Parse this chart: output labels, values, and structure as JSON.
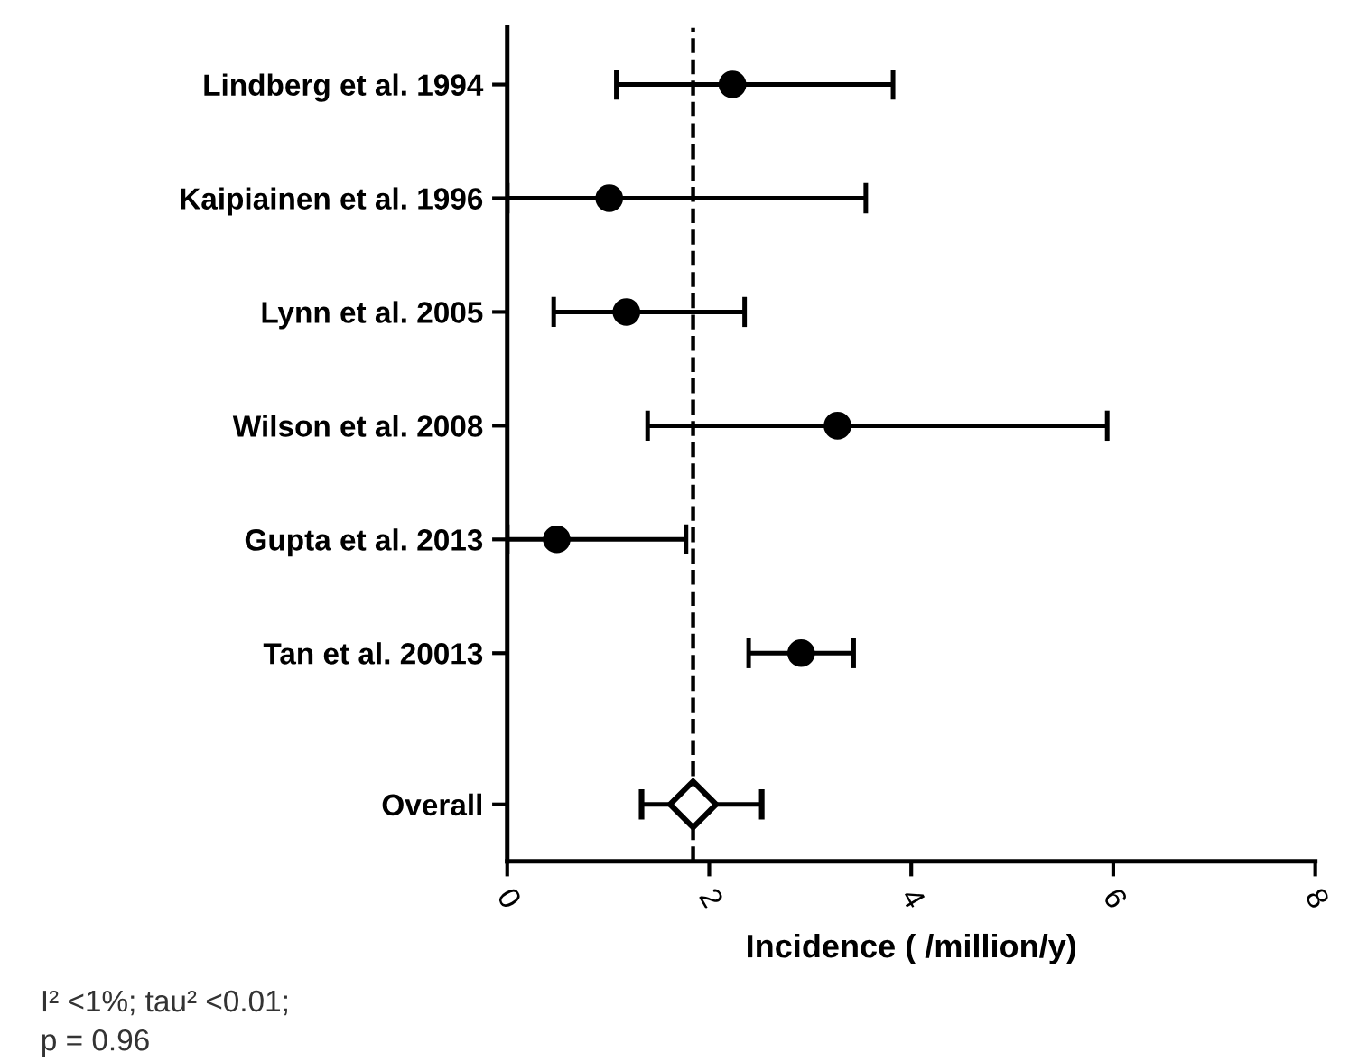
{
  "chart_data": {
    "type": "scatter",
    "orientation": "horizontal",
    "xlabel": "Incidence ( /million/y)",
    "categories": [
      "Lindberg et al. 1994",
      "Kaipiainen et al. 1996",
      "Lynn et al. 2005",
      "Wilson et al. 2008",
      "Gupta et al. 2013",
      "Tan et al. 20013",
      "Overall"
    ],
    "series": [
      {
        "color": "#000000",
        "marker": "circle",
        "values": [
          2.23,
          1.01,
          1.18,
          3.27,
          0.49,
          2.91,
          null
        ],
        "errors": [
          [
            1.08,
            3.82
          ],
          [
            0.0,
            3.55
          ],
          [
            0.46,
            2.35
          ],
          [
            1.39,
            5.94
          ],
          [
            0.0,
            1.77
          ],
          [
            2.39,
            3.43
          ],
          null
        ]
      },
      {
        "color": "#000000",
        "marker": "diamond",
        "values": [
          null,
          null,
          null,
          null,
          null,
          null,
          1.84
        ],
        "errors": [
          null,
          null,
          null,
          null,
          null,
          null,
          [
            1.33,
            2.52
          ]
        ]
      }
    ],
    "xlim": [
      0,
      8
    ],
    "xticks": [
      0,
      2,
      4,
      6,
      8
    ],
    "ref_lines": [
      {
        "axis": "x",
        "value": 1.84,
        "color": "#000000",
        "line_style": "dashed"
      }
    ],
    "annotations": [
      "I² <1%; tau² <0.01;\np = 0.96"
    ],
    "grid": false,
    "legend": false
  }
}
